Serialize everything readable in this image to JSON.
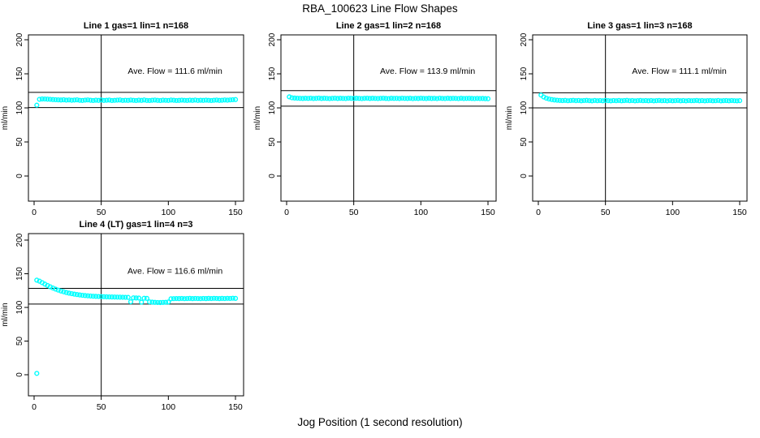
{
  "page": {
    "title": "RBA_100623  Line Flow Shapes",
    "xlabel": "Jog Position (1 second resolution)",
    "ylabel": "ml/min",
    "background": "#ffffff",
    "point_color": "#00ffff"
  },
  "chart_data": [
    {
      "type": "scatter",
      "title": "Line 1 gas=1 lin=1 n=168",
      "annotation": "Ave. Flow =  111.6  ml/min",
      "ave_flow_ml_min": 111.6,
      "n": 168,
      "xlim": [
        0,
        150
      ],
      "ylim": [
        0,
        200
      ],
      "x_ticks": [
        0,
        50,
        100,
        150
      ],
      "y_ticks": [
        0,
        50,
        100,
        150,
        200
      ],
      "vline_x": 50,
      "hlines": [
        100.4,
        122.8
      ],
      "marker": "open-circle",
      "marker_color": "#00ffff",
      "series": {
        "name": "flow",
        "x_start": 2,
        "x_step": 2,
        "y": [
          104,
          112.6,
          113.1,
          113.0,
          112.8,
          112.6,
          112.2,
          112.0,
          111.8,
          111.6,
          111.9,
          111.4,
          111.7,
          111.2,
          111.5,
          111.8,
          111.1,
          110.9,
          111.4,
          111.7,
          111.2,
          110.8,
          111.3,
          111.0,
          111.6,
          110.9,
          111.2,
          111.5,
          110.8,
          111.1,
          111.4,
          111.6,
          110.9,
          111.2,
          111.0,
          111.5,
          111.1,
          110.8,
          111.3,
          111.0,
          111.6,
          110.9,
          110.8,
          111.2,
          111.5,
          111.0,
          110.8,
          111.3,
          111.1,
          110.9,
          111.5,
          111.2,
          110.8,
          111.0,
          111.4,
          111.1,
          110.9,
          111.3,
          111.0,
          111.5,
          110.9,
          111.2,
          111.0,
          111.4,
          111.1,
          110.8,
          111.2,
          111.5,
          111.0,
          111.2,
          111.6,
          111.3,
          111.7,
          112.0,
          112.2
        ]
      },
      "extra_points": []
    },
    {
      "type": "scatter",
      "title": "Line 2 gas=1 lin=2 n=168",
      "annotation": "Ave. Flow =  113.9  ml/min",
      "ave_flow_ml_min": 113.9,
      "n": 168,
      "xlim": [
        0,
        150
      ],
      "ylim": [
        0,
        200
      ],
      "x_ticks": [
        0,
        50,
        100,
        150
      ],
      "y_ticks": [
        0,
        50,
        100,
        150,
        200
      ],
      "vline_x": 50,
      "hlines": [
        102.5,
        125.3
      ],
      "marker": "open-circle",
      "marker_color": "#00ffff",
      "series": {
        "name": "flow",
        "x_start": 2,
        "x_step": 2,
        "y": [
          116.2,
          114.8,
          114.4,
          114.2,
          114.0,
          113.8,
          114.1,
          113.9,
          114.2,
          113.7,
          114.0,
          114.3,
          113.8,
          114.1,
          113.9,
          113.6,
          114.0,
          114.2,
          113.8,
          114.1,
          113.9,
          113.7,
          114.2,
          114.0,
          113.8,
          114.1,
          113.9,
          113.6,
          114.0,
          114.2,
          113.8,
          114.1,
          113.9,
          113.7,
          114.0,
          114.2,
          113.8,
          113.6,
          114.1,
          113.9,
          114.0,
          113.7,
          114.2,
          113.9,
          113.8,
          114.1,
          113.6,
          114.0,
          113.8,
          114.2,
          113.9,
          113.7,
          114.1,
          113.8,
          114.0,
          113.6,
          114.2,
          113.9,
          113.7,
          114.1,
          113.8,
          114.0,
          113.9,
          113.6,
          114.1,
          113.7,
          113.9,
          114.0,
          113.8,
          113.6,
          113.9,
          113.7,
          113.8,
          113.5,
          113.4
        ]
      },
      "extra_points": []
    },
    {
      "type": "scatter",
      "title": "Line 3 gas=1 lin=3 n=168",
      "annotation": "Ave. Flow =  111.1  ml/min",
      "ave_flow_ml_min": 111.1,
      "n": 168,
      "xlim": [
        0,
        150
      ],
      "ylim": [
        0,
        200
      ],
      "x_ticks": [
        0,
        50,
        100,
        150
      ],
      "y_ticks": [
        0,
        50,
        100,
        150,
        200
      ],
      "vline_x": 50,
      "hlines": [
        100.0,
        122.2
      ],
      "marker": "open-circle",
      "marker_color": "#00ffff",
      "series": {
        "name": "flow",
        "x_start": 2,
        "x_step": 2,
        "y": [
          118.8,
          116.0,
          114.2,
          113.0,
          112.2,
          111.6,
          111.2,
          110.9,
          110.7,
          111.0,
          110.5,
          110.8,
          111.1,
          110.6,
          110.9,
          110.4,
          110.8,
          111.0,
          110.6,
          110.3,
          110.9,
          110.5,
          110.8,
          110.4,
          111.0,
          110.6,
          110.3,
          110.8,
          110.5,
          110.9,
          110.4,
          110.7,
          111.0,
          110.5,
          110.8,
          110.3,
          110.6,
          110.9,
          110.5,
          110.7,
          110.4,
          110.8,
          110.3,
          110.6,
          110.9,
          110.5,
          110.7,
          110.3,
          110.8,
          110.4,
          110.6,
          110.9,
          110.4,
          110.7,
          110.3,
          110.8,
          110.5,
          110.6,
          110.9,
          110.4,
          110.7,
          110.3,
          110.6,
          110.8,
          110.4,
          110.5,
          110.9,
          110.3,
          110.6,
          110.7,
          110.4,
          110.8,
          110.5,
          110.3,
          110.6
        ]
      },
      "extra_points": []
    },
    {
      "type": "scatter",
      "title": "Line 4 (LT) gas=1 lin=4 n=3",
      "annotation": "Ave. Flow =  116.6  ml/min",
      "ave_flow_ml_min": 116.6,
      "n": 3,
      "xlim": [
        0,
        150
      ],
      "ylim": [
        0,
        200
      ],
      "x_ticks": [
        0,
        50,
        100,
        150
      ],
      "y_ticks": [
        0,
        50,
        100,
        150,
        200
      ],
      "vline_x": 50,
      "hlines": [
        104.9,
        128.3
      ],
      "marker": "open-circle",
      "marker_color": "#00ffff",
      "series": {
        "name": "flow",
        "x_start": 2,
        "x_step": 2,
        "y": [
          140.5,
          139.0,
          136.8,
          134.6,
          132.6,
          130.6,
          128.8,
          127.2,
          125.7,
          124.4,
          123.2,
          122.1,
          121.2,
          120.4,
          119.7,
          119.1,
          118.5,
          118.0,
          117.6,
          117.2,
          116.9,
          116.6,
          116.4,
          116.2,
          116.0,
          115.9,
          115.7,
          115.6,
          115.5,
          115.4,
          115.3,
          115.2,
          115.1,
          115.0,
          114.9,
          108.3,
          114.2,
          114.0,
          113.9,
          107.8,
          113.6,
          113.4,
          108.2,
          107.8,
          107.5,
          107.3,
          107.2,
          107.4,
          107.6,
          108.0,
          112.8,
          113.0,
          113.2,
          113.1,
          113.3,
          113.0,
          113.2,
          113.4,
          113.1,
          113.3,
          113.2,
          113.0,
          113.3,
          113.1,
          113.4,
          113.2,
          113.5,
          113.3,
          113.1,
          113.4,
          113.2,
          113.5,
          113.3,
          113.6,
          113.4
        ]
      },
      "extra_points": [
        [
          2,
          2
        ]
      ]
    }
  ]
}
